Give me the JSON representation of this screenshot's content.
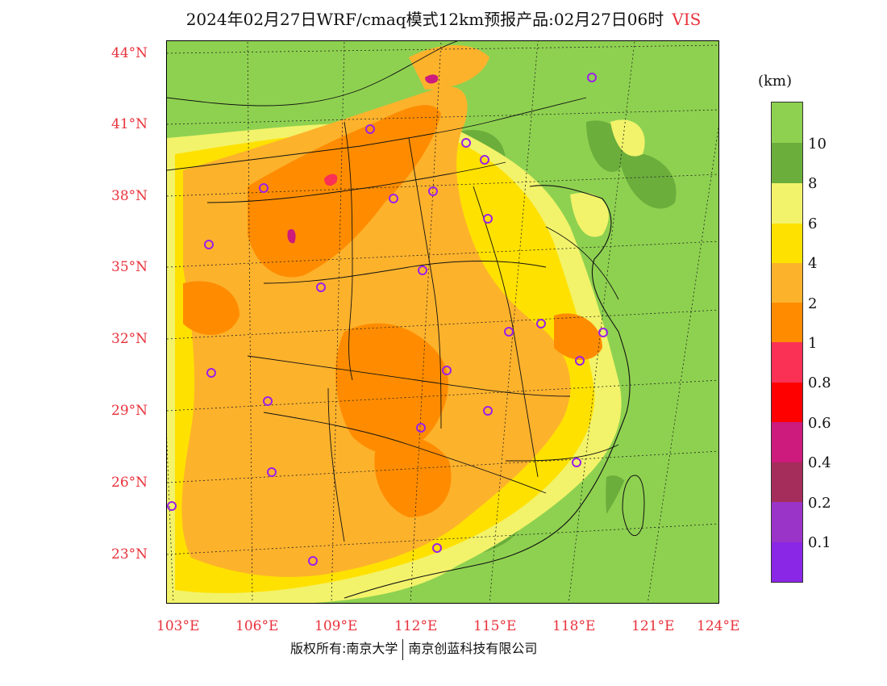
{
  "title": {
    "main": "2024年02月27日WRF/cmaq模式12km预报产品:02月27日06时",
    "variable": "VIS"
  },
  "map": {
    "latitude_labels": [
      "44°N",
      "41°N",
      "38°N",
      "35°N",
      "32°N",
      "29°N",
      "26°N",
      "23°N"
    ],
    "longitude_labels": [
      "103°E",
      "106°E",
      "109°E",
      "112°E",
      "115°E",
      "118°E",
      "121°E",
      "124°E"
    ],
    "station_marker_color": "#9b20e8",
    "gridline_style": "dotted",
    "stations_count": 23
  },
  "legend": {
    "unit": "(km)",
    "labels": [
      "10",
      "8",
      "6",
      "4",
      "2",
      "1",
      "0.8",
      "0.6",
      "0.4",
      "0.2",
      "0.1"
    ],
    "colors": [
      "#8ed150",
      "#6bae3c",
      "#f2f36a",
      "#ffe100",
      "#fdb22c",
      "#ff8c00",
      "#fa3055",
      "#ff0000",
      "#cc1a7d",
      "#a52d5c",
      "#9a34c8",
      "#8a26e6"
    ]
  },
  "footer": {
    "copyright": "版权所有:南京大学",
    "company": "南京创蓝科技有限公司"
  }
}
